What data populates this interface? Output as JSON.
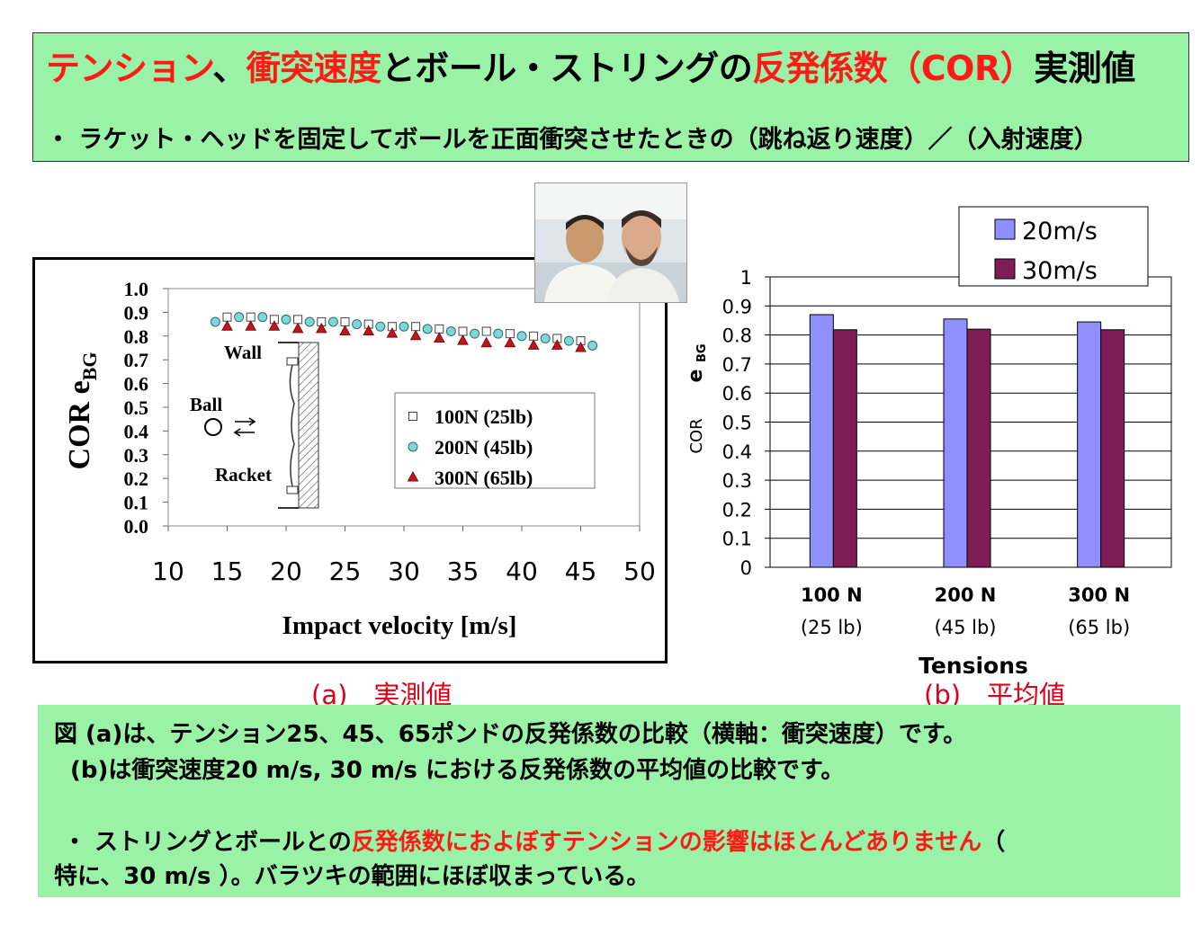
{
  "header": {
    "title_parts": [
      {
        "text": "テンション",
        "color": "#ff1a1a"
      },
      {
        "text": "、",
        "color": "#000000"
      },
      {
        "text": "衝突速度",
        "color": "#ff1a1a"
      },
      {
        "text": "とボール・ストリングの",
        "color": "#000000"
      },
      {
        "text": "反発係数（COR）",
        "color": "#ff1a1a"
      },
      {
        "text": "実測値",
        "color": "#000000"
      }
    ],
    "subtitle": "・ ラケット・ヘッドを固定してボールを正面衝突させたときの（跳ね返り速度）／（入射速度）"
  },
  "chart_data": [
    {
      "type": "scatter",
      "xlabel": "Impact velocity [m/s]",
      "ylabel": "COR e",
      "ylabel_sub": "BG",
      "xlim": [
        10,
        50
      ],
      "ylim": [
        0.0,
        1.0
      ],
      "xticks": [
        "10",
        "15",
        "20",
        "25",
        "30",
        "35",
        "40",
        "45",
        "50"
      ],
      "yticks": [
        "0.0",
        "0.1",
        "0.2",
        "0.3",
        "0.4",
        "0.5",
        "0.6",
        "0.7",
        "0.8",
        "0.9",
        "1.0"
      ],
      "series": [
        {
          "name": "100N (25lb)",
          "marker": "square",
          "color": "#ffffff",
          "x": [
            15,
            17,
            19,
            21,
            23,
            25,
            27,
            29,
            31,
            33,
            35,
            37,
            39,
            41,
            43,
            45
          ],
          "y": [
            0.88,
            0.88,
            0.87,
            0.87,
            0.86,
            0.86,
            0.85,
            0.84,
            0.84,
            0.83,
            0.82,
            0.82,
            0.81,
            0.8,
            0.79,
            0.78
          ]
        },
        {
          "name": "200N (45lb)",
          "marker": "circle",
          "color": "#7fd6d9",
          "x": [
            14,
            16,
            18,
            20,
            22,
            24,
            26,
            28,
            30,
            32,
            34,
            36,
            38,
            40,
            42,
            44,
            46
          ],
          "y": [
            0.86,
            0.88,
            0.88,
            0.87,
            0.86,
            0.86,
            0.85,
            0.84,
            0.84,
            0.83,
            0.82,
            0.81,
            0.81,
            0.8,
            0.79,
            0.78,
            0.76
          ]
        },
        {
          "name": "300N (65lb)",
          "marker": "triangle",
          "color": "#c0161d",
          "x": [
            15,
            17,
            19,
            21,
            23,
            25,
            27,
            29,
            31,
            33,
            35,
            37,
            39,
            41,
            43,
            45
          ],
          "y": [
            0.84,
            0.84,
            0.84,
            0.83,
            0.83,
            0.82,
            0.82,
            0.81,
            0.8,
            0.79,
            0.78,
            0.77,
            0.77,
            0.76,
            0.76,
            0.75
          ]
        }
      ],
      "inset_labels": {
        "wall": "Wall",
        "ball": "Ball",
        "racket": "Racket"
      },
      "legend": [
        "100N (25lb)",
        "200N (45lb)",
        "300N (65lb)"
      ],
      "legend_position": "right"
    },
    {
      "type": "bar",
      "xlabel": "Tensions",
      "ylabel": "COR e",
      "ylabel_sub": "BG",
      "ylim": [
        0,
        1
      ],
      "yticks": [
        "0",
        "0.1",
        "0.2",
        "0.3",
        "0.4",
        "0.5",
        "0.6",
        "0.7",
        "0.8",
        "0.9",
        "1"
      ],
      "categories": [
        "100 N",
        "200 N",
        "300 N"
      ],
      "categories_sub": [
        "(25 lb)",
        "(45 lb)",
        "(65 lb)"
      ],
      "series": [
        {
          "name": "20m/s",
          "color": "#8f8fff",
          "values": [
            0.87,
            0.855,
            0.845
          ]
        },
        {
          "name": "30m/s",
          "color": "#7e1d56",
          "values": [
            0.818,
            0.82,
            0.818
          ]
        }
      ],
      "legend_position": "top-right",
      "grid": true
    }
  ],
  "captions": {
    "a": "(a)　実測値",
    "b": "(b)　平均値"
  },
  "notes": {
    "line1": "図 (a)は、テンション25、45、65ポンドの反発係数の比較（横軸：衝突速度）です。",
    "line2": "(b)は衝突速度20 m/s, 30 m/s における反発係数の平均値の比較です。",
    "line3_parts": [
      {
        "text": "・ ストリングとボールとの",
        "color": "#000000"
      },
      {
        "text": "反発係数におよぼすテンションの影響はほとんどありません",
        "color": "#ff1a1a"
      },
      {
        "text": "（",
        "color": "#000000"
      }
    ],
    "line4": "特に、30 m/s ）。バラツキの範囲にほぼ収まっている。"
  },
  "colors": {
    "panel_green": "#99f2a6",
    "accent_red": "#ff1a1a"
  }
}
